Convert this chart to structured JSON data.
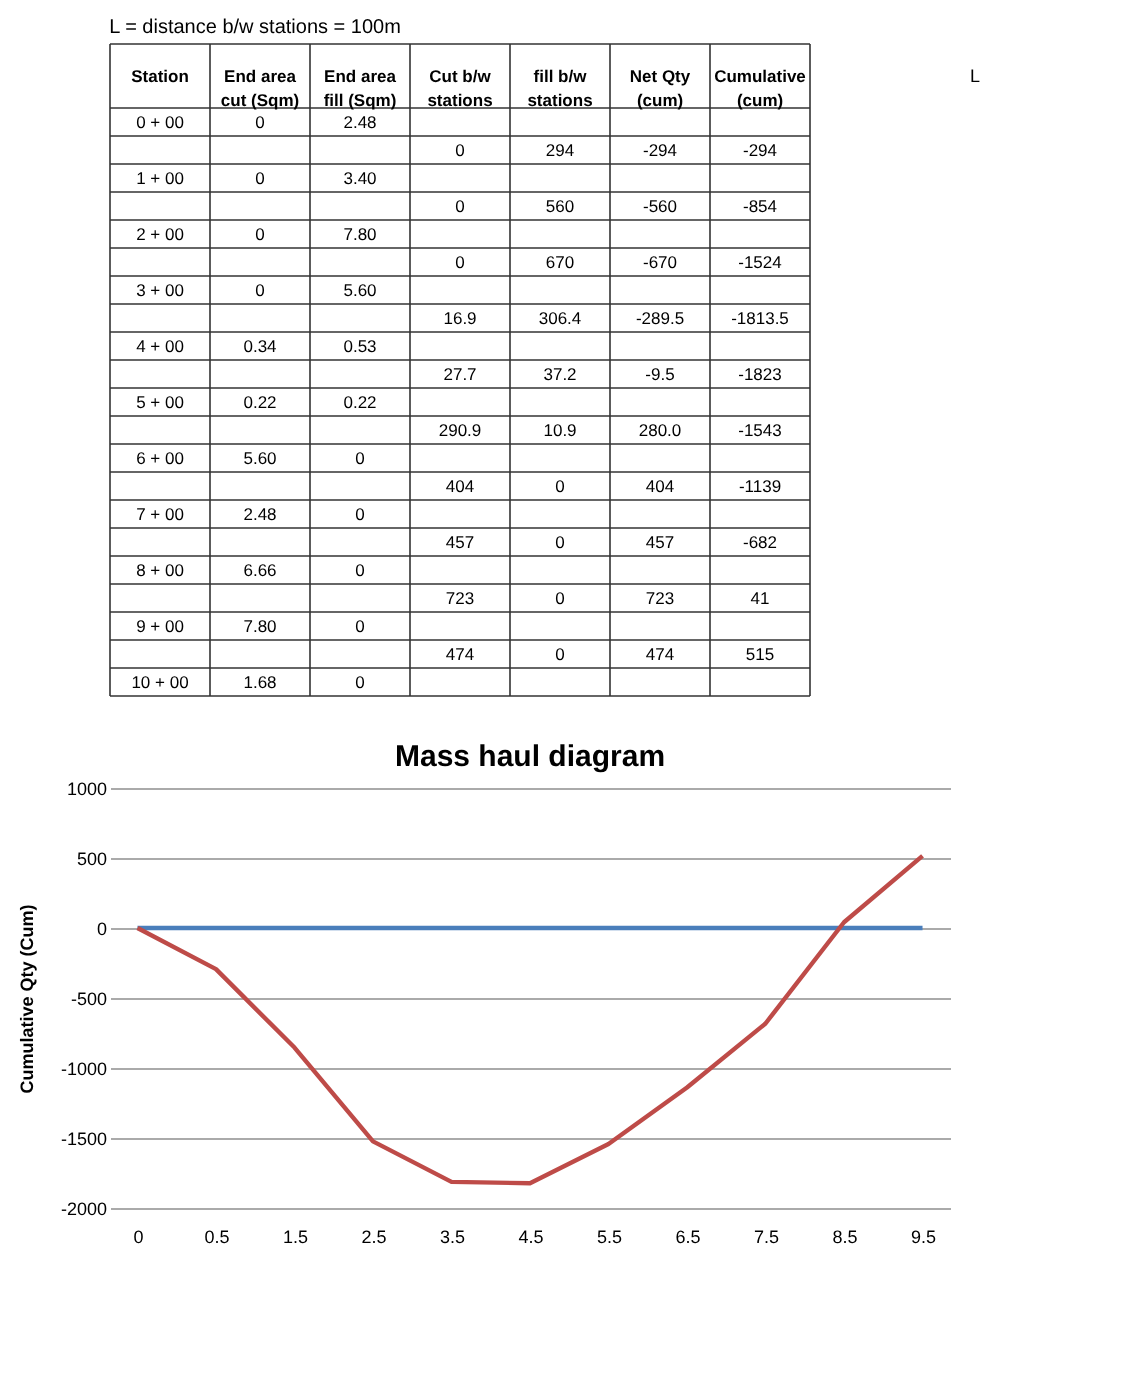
{
  "chart_data": [
    {
      "type": "other",
      "title": "L = distance b/w stations = 100m",
      "categories": [
        "Station",
        "End area cut (Sqm)",
        "End area fill (Sqm)",
        "Cut b/w stations",
        "fill b/w stations",
        "Net Qty (cum)",
        "Cumulative (cum)"
      ],
      "cell_labels": [
        [
          "0 + 00",
          "0",
          "2.48",
          null,
          null,
          null,
          null
        ],
        [
          null,
          null,
          null,
          "0",
          "294",
          "-294",
          "-294"
        ],
        [
          "1 + 00",
          "0",
          "3.40",
          null,
          null,
          null,
          null
        ],
        [
          null,
          null,
          null,
          "0",
          "560",
          "-560",
          "-854"
        ],
        [
          "2 + 00",
          "0",
          "7.80",
          null,
          null,
          null,
          null
        ],
        [
          null,
          null,
          null,
          "0",
          "670",
          "-670",
          "-1524"
        ],
        [
          "3 + 00",
          "0",
          "5.60",
          null,
          null,
          null,
          null
        ],
        [
          null,
          null,
          null,
          "16.9",
          "306.4",
          "-289.5",
          "-1813.5"
        ],
        [
          "4 + 00",
          "0.34",
          "0.53",
          null,
          null,
          null,
          null
        ],
        [
          null,
          null,
          null,
          "27.7",
          "37.2",
          "-9.5",
          "-1823"
        ],
        [
          "5 + 00",
          "0.22",
          "0.22",
          null,
          null,
          null,
          null
        ],
        [
          null,
          null,
          null,
          "290.9",
          "10.9",
          "280.0",
          "-1543"
        ],
        [
          "6 + 00",
          "5.60",
          "0",
          null,
          null,
          null,
          null
        ],
        [
          null,
          null,
          null,
          "404",
          "0",
          "404",
          "-1139"
        ],
        [
          "7 + 00",
          "2.48",
          "0",
          null,
          null,
          null,
          null
        ],
        [
          null,
          null,
          null,
          "457",
          "0",
          "457",
          "-682"
        ],
        [
          "8 + 00",
          "6.66",
          "0",
          null,
          null,
          null,
          null
        ],
        [
          null,
          null,
          null,
          "723",
          "0",
          "723",
          "41"
        ],
        [
          "9 + 00",
          "7.80",
          "0",
          null,
          null,
          null,
          null
        ],
        [
          null,
          null,
          null,
          "474",
          "0",
          "474",
          "515"
        ],
        [
          "10 + 00",
          "1.68",
          "0",
          null,
          null,
          null,
          null
        ]
      ],
      "annotations": [
        "L"
      ]
    },
    {
      "type": "line",
      "title": "Mass haul diagram",
      "ylabel": "Cumulative Qty (Cum)",
      "categories": [
        "0",
        "0.5",
        "1.5",
        "2.5",
        "3.5",
        "4.5",
        "5.5",
        "6.5",
        "7.5",
        "8.5",
        "9.5"
      ],
      "series": [
        {
          "color": "#4a7ebb",
          "values": [
            0,
            0,
            0,
            0,
            0,
            0,
            0,
            0,
            0,
            0,
            0
          ]
        },
        {
          "color": "#be4b48",
          "values": [
            0,
            -294,
            -854,
            -1524,
            -1813.5,
            -1823,
            -1543,
            -1139,
            -682,
            41,
            515
          ]
        }
      ],
      "ylim": [
        -2000,
        1000
      ],
      "yticks": [
        -2000,
        -1500,
        -1000,
        -500,
        0,
        500,
        1000
      ],
      "grid": "y",
      "legend": false,
      "marker": "none",
      "line_style": "solid"
    }
  ]
}
